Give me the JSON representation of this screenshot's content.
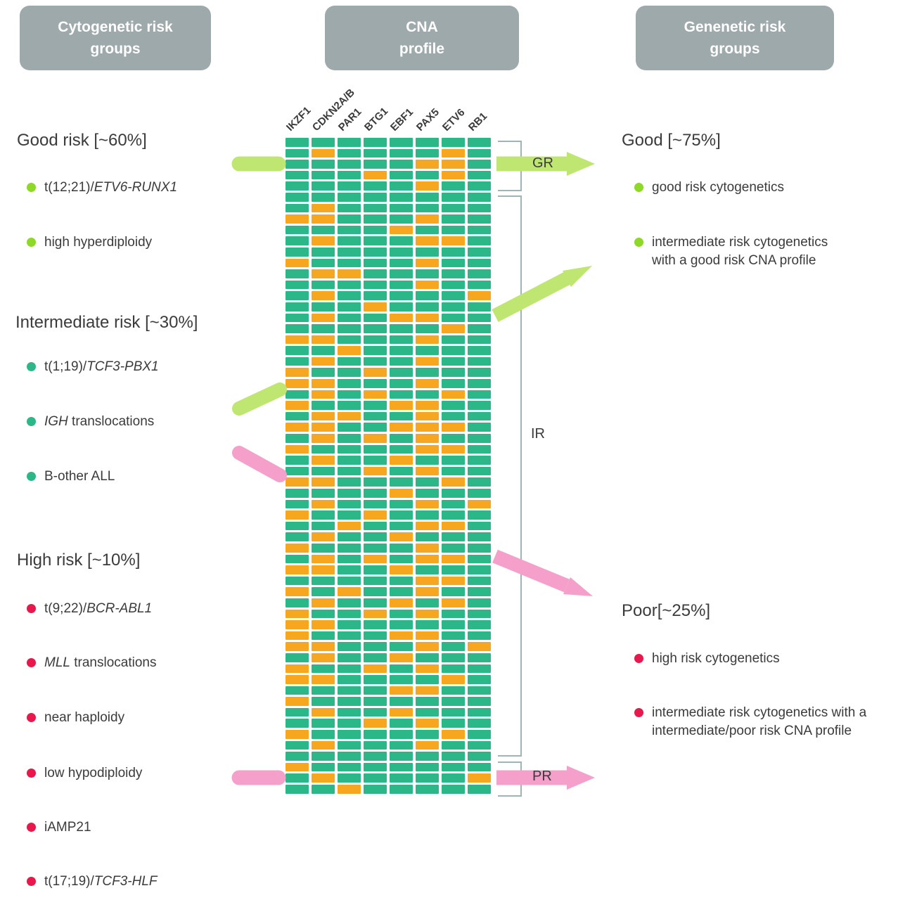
{
  "headers": {
    "left_lines": [
      "Cytogenetic risk",
      "groups"
    ],
    "center_lines": [
      "CNA",
      "profile"
    ],
    "right_lines": [
      "Genenetic risk",
      "groups"
    ]
  },
  "left_panel": {
    "sections": [
      {
        "heading": "Good risk [~60%]",
        "items": [
          {
            "segments": [
              {
                "t": "t(12;21)/"
              },
              {
                "t": "ETV6-RUNX1",
                "i": true
              }
            ]
          },
          {
            "segments": [
              {
                "t": "high hyperdiploidy"
              }
            ]
          }
        ]
      },
      {
        "heading": "Intermediate risk [~30%]",
        "items": [
          {
            "segments": [
              {
                "t": "t(1;19)/"
              },
              {
                "t": "TCF3-PBX1",
                "i": true
              }
            ]
          },
          {
            "segments": [
              {
                "t": "IGH",
                "i": true
              },
              {
                "t": " translocations"
              }
            ]
          },
          {
            "segments": [
              {
                "t": "B-other ALL"
              }
            ]
          }
        ]
      },
      {
        "heading": "High risk [~10%]",
        "items": [
          {
            "segments": [
              {
                "t": "t(9;22)/"
              },
              {
                "t": "BCR-ABL1",
                "i": true
              }
            ]
          },
          {
            "segments": [
              {
                "t": "MLL",
                "i": true
              },
              {
                "t": " translocations"
              }
            ]
          },
          {
            "segments": [
              {
                "t": "near haploidy"
              }
            ]
          },
          {
            "segments": [
              {
                "t": "low hypodiploidy"
              }
            ]
          },
          {
            "segments": [
              {
                "t": "iAMP21"
              }
            ]
          },
          {
            "segments": [
              {
                "t": "t(17;19)/"
              },
              {
                "t": "TCF3-HLF",
                "i": true
              }
            ]
          }
        ]
      }
    ]
  },
  "right_panel": {
    "sections": [
      {
        "heading": "Good [~75%]",
        "items": [
          {
            "lines": [
              "good risk cytogenetics"
            ]
          },
          {
            "lines": [
              "intermediate risk cytogenetics",
              "with a good risk CNA profile"
            ]
          }
        ]
      },
      {
        "heading": "Poor[~25%]",
        "items": [
          {
            "lines": [
              "high risk cytogenetics"
            ]
          },
          {
            "lines": [
              "intermediate risk cytogenetics with a",
              "intermediate/poor risk  CNA profile"
            ]
          }
        ]
      }
    ]
  },
  "brackets": {
    "gr": "GR",
    "ir": "IR",
    "pr": "PR"
  },
  "heatmap": {
    "columns": [
      "IKZF1",
      "CDKN2A/B",
      "PAR1",
      "BTG1",
      "EBF1",
      "PAX5",
      "ETV6",
      "RB1"
    ],
    "legend": {
      "g": "no deletion (green)",
      "o": "deletion/alteration (orange)"
    },
    "rows": [
      "gggggggg",
      "goggggog",
      "gggggoog",
      "gggoggog",
      "gggggogg",
      "gggggggg",
      "gogggggg",
      "oogggogg",
      "ggggoggg",
      "gogggoog",
      "gggggggg",
      "oggggogg",
      "googgggg",
      "gggggogg",
      "gogggggo",
      "gggogggg",
      "goggoogg",
      "ggggggog",
      "oogggogg",
      "ggoggggg",
      "gogggogg",
      "oggogggg",
      "oogggogg",
      "gogoggog",
      "ogggoogg",
      "googgogg",
      "ooggooog",
      "gogogogg",
      "oggggoog",
      "goggoggg",
      "gggogogg",
      "ooggggog",
      "ggggoggg",
      "gogggogo",
      "oggogggg",
      "ggoggoog",
      "goggoggg",
      "oggggogg",
      "gogogoog",
      "ooggoggg",
      "gggggoog",
      "ogoggogg",
      "goggogog",
      "oggogogg",
      "oogggggg",
      "ogggoogg",
      "oogggogo",
      "goggoggg",
      "oggogogg",
      "ooggggog",
      "ggggoogg",
      "oggggggg",
      "goggoggg",
      "gggogogg",
      "ogggggog",
      "gogggogg",
      "gggggggg",
      "oggggggg",
      "gogggggo",
      "ggoggggg"
    ]
  },
  "colors": {
    "header_bg": "#9ea9ab",
    "heatmap_green": "#2bb787",
    "heatmap_orange": "#f6a71f",
    "bullet_good": "#8ed827",
    "bullet_intermediate": "#2bb787",
    "bullet_high": "#e8184c",
    "arrow_green": "#c0e672",
    "arrow_pink": "#f5a0ca",
    "text": "#3b3b3b"
  }
}
